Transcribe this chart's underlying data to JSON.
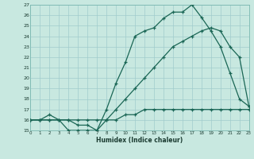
{
  "xlabel": "Humidex (Indice chaleur)",
  "bg_color": "#c8e8e0",
  "grid_color": "#a0cccc",
  "line_color": "#1a6655",
  "xlim": [
    0,
    23
  ],
  "ylim": [
    15,
    27
  ],
  "ytick_vals": [
    15,
    16,
    17,
    18,
    19,
    20,
    21,
    22,
    23,
    24,
    25,
    26,
    27
  ],
  "xtick_vals": [
    0,
    1,
    2,
    3,
    4,
    5,
    6,
    7,
    8,
    9,
    10,
    11,
    12,
    13,
    14,
    15,
    16,
    17,
    18,
    19,
    20,
    21,
    22,
    23
  ],
  "line1_x": [
    0,
    1,
    2,
    3,
    4,
    5,
    6,
    7,
    8,
    9,
    10,
    11,
    12,
    13,
    14,
    15,
    16,
    17,
    18,
    19,
    20,
    21,
    22,
    23
  ],
  "line1_y": [
    16,
    16,
    16,
    16,
    15,
    15,
    15,
    15,
    16,
    16,
    16.5,
    16.5,
    17,
    17,
    17,
    17,
    17,
    17,
    17,
    17,
    17,
    17,
    17,
    17
  ],
  "line2_x": [
    0,
    1,
    2,
    3,
    4,
    5,
    6,
    7,
    8,
    9,
    10,
    11,
    12,
    13,
    14,
    15,
    16,
    17,
    18,
    19,
    20,
    21,
    22,
    23
  ],
  "line2_y": [
    16,
    16,
    16.5,
    16,
    16,
    15.5,
    15.5,
    15,
    17,
    19.5,
    21.5,
    24,
    24.5,
    24.8,
    25.7,
    26.3,
    26.3,
    27,
    25.8,
    24.5,
    23,
    20.5,
    18,
    17.3
  ],
  "line3_x": [
    0,
    1,
    2,
    3,
    4,
    5,
    6,
    7,
    8,
    9,
    10,
    11,
    12,
    13,
    14,
    15,
    16,
    17,
    18,
    19,
    20,
    21,
    22,
    23
  ],
  "line3_y": [
    16,
    16,
    16,
    16,
    16,
    16,
    16,
    16,
    16,
    17,
    18,
    19,
    20,
    21,
    22,
    23,
    23.5,
    24,
    24.5,
    24.8,
    24.5,
    23,
    22,
    17.3
  ]
}
